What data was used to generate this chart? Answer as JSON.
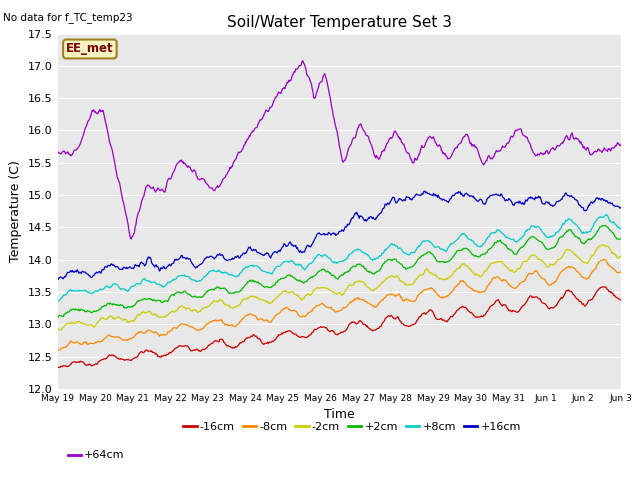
{
  "title": "Soil/Water Temperature Set 3",
  "xlabel": "Time",
  "ylabel": "Temperature (C)",
  "no_data_text": "No data for f_TC_temp23",
  "ee_met_label": "EE_met",
  "ylim": [
    12.0,
    17.5
  ],
  "background_color": "#e8e8e8",
  "series_colors": {
    "-16cm": "#cc0000",
    "-8cm": "#ff8800",
    "-2cm": "#cccc00",
    "+2cm": "#00bb00",
    "+8cm": "#00cccc",
    "+16cm": "#0000cc",
    "+64cm": "#9900cc"
  },
  "n_points": 720,
  "total_days": 16,
  "yticks": [
    12.0,
    12.5,
    13.0,
    13.5,
    14.0,
    14.5,
    15.0,
    15.5,
    16.0,
    16.5,
    17.0,
    17.5
  ],
  "xtick_labels": [
    "May 19",
    "May 20",
    "May 21",
    "May 22",
    "May 23",
    "May 24",
    "May 25",
    "May 26",
    "May 27",
    "May 28",
    "May 29",
    "May 30",
    "May 31",
    "Jun 1",
    "Jun 2",
    "Jun 3"
  ],
  "legend_order": [
    "-16cm",
    "-8cm",
    "-2cm",
    "+2cm",
    "+8cm",
    "+16cm",
    "+64cm"
  ],
  "series_starts": {
    "-16cm": 12.35,
    "-8cm": 12.65,
    "-2cm": 12.95,
    "+2cm": 13.15,
    "+8cm": 13.45,
    "+16cm": 13.75
  },
  "series_ends": {
    "-16cm": 13.5,
    "-8cm": 13.9,
    "-2cm": 14.15,
    "+2cm": 14.45,
    "+8cm": 14.6,
    "+16cm": 15.0
  }
}
